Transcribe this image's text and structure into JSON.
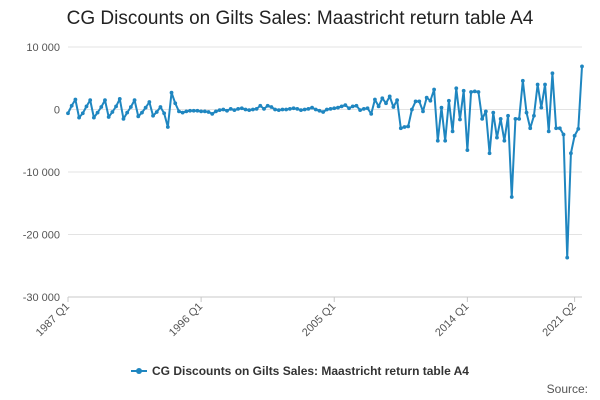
{
  "chart_data": {
    "type": "line",
    "title": "CG Discounts on Gilts Sales: Maastricht return table A4",
    "xlabel": "",
    "ylabel": "",
    "ylim": [
      -30000,
      10000
    ],
    "yticks": [
      10000,
      0,
      -10000,
      -20000,
      -30000
    ],
    "ytick_labels": [
      "10 000",
      "0",
      "-10 000",
      "-20 000",
      "-30 000"
    ],
    "x_start": "1987 Q1",
    "x_end": "2021 Q2",
    "xtick_labels": [
      "1987 Q1",
      "1996 Q1",
      "2005 Q1",
      "2014 Q1",
      "2021 Q2"
    ],
    "xtick_indices": [
      0,
      36,
      72,
      108,
      137
    ],
    "grid": true,
    "legend_position": "bottom",
    "series": [
      {
        "name": "CG Discounts on Gilts Sales: Maastricht return table A4",
        "color": "#1f86c0",
        "values": [
          -600,
          600,
          1600,
          -1300,
          -600,
          500,
          1500,
          -1300,
          -500,
          400,
          1500,
          -1200,
          -400,
          500,
          1700,
          -1500,
          -500,
          400,
          1500,
          -1100,
          -500,
          300,
          1200,
          -1000,
          -400,
          400,
          -600,
          -2800,
          2700,
          1000,
          -300,
          -500,
          -300,
          -200,
          -200,
          -200,
          -300,
          -300,
          -400,
          -700,
          -300,
          -100,
          0,
          -200,
          100,
          -100,
          100,
          200,
          0,
          -100,
          0,
          100,
          600,
          100,
          600,
          400,
          0,
          -100,
          0,
          0,
          100,
          200,
          100,
          -100,
          0,
          100,
          300,
          0,
          -200,
          -400,
          0,
          100,
          200,
          300,
          500,
          700,
          200,
          500,
          600,
          -100,
          100,
          200,
          -700,
          1600,
          500,
          1800,
          1000,
          2100,
          400,
          1500,
          -3000,
          -2800,
          -2700,
          0,
          1300,
          1300,
          -300,
          1900,
          1400,
          3200,
          -5000,
          300,
          -5000,
          1400,
          -3500,
          3400,
          -1600,
          3000,
          -6500,
          2800,
          2900,
          2800,
          -1500,
          -300,
          -7000,
          -500,
          -4500,
          -1500,
          -5000,
          -1000,
          -14000,
          -1500,
          -1500,
          4600,
          -500,
          -3000,
          -1000,
          4000,
          300,
          4000,
          -3500,
          5800,
          -3000,
          -3000,
          -4000,
          -23700,
          -7000,
          -4200,
          -3100,
          6900
        ]
      }
    ]
  },
  "legend": {
    "label": "CG Discounts on Gilts Sales: Maastricht return table A4"
  },
  "source": {
    "label": "Source:"
  }
}
